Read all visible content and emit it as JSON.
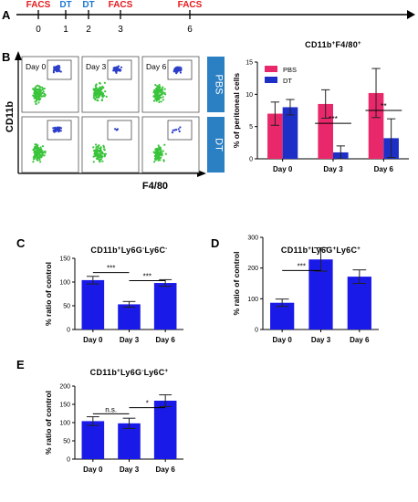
{
  "panels": {
    "A": "A",
    "B": "B",
    "C": "C",
    "D": "D",
    "E": "E"
  },
  "timeline": {
    "events": [
      {
        "day": "0",
        "label": "FACS",
        "color": "#e41a1c"
      },
      {
        "day": "1",
        "label": "DT",
        "color": "#1f78d1"
      },
      {
        "day": "2",
        "label": "DT",
        "color": "#1f78d1"
      },
      {
        "day": "3",
        "label": "FACS",
        "color": "#e41a1c"
      },
      {
        "day": "6",
        "label": "FACS",
        "color": "#e41a1c"
      }
    ]
  },
  "flow": {
    "y_label": "CD11b",
    "x_label": "F4/80",
    "row_labels": [
      "PBS",
      "DT"
    ],
    "col_labels": [
      "Day 0",
      "Day 3",
      "Day 6"
    ],
    "row_color": "#2b7fc3"
  },
  "chart_data": [
    {
      "id": "B",
      "type": "bar",
      "title": "CD11b+F4/80+",
      "ylabel": "% of peritoneal cells",
      "categories": [
        "Day 0",
        "Day 3",
        "Day 6"
      ],
      "ylim": [
        0,
        15
      ],
      "yticks": [
        0,
        5,
        10,
        15
      ],
      "series": [
        {
          "name": "PBS",
          "color": "#e8286a",
          "values": [
            7,
            8.5,
            10.2
          ],
          "errors": [
            1.8,
            2.2,
            3.8
          ]
        },
        {
          "name": "DT",
          "color": "#1d2fc7",
          "values": [
            8,
            1,
            3.2
          ],
          "errors": [
            1.2,
            1,
            3
          ]
        }
      ],
      "legend": "top-left",
      "significance": [
        {
          "category": 1,
          "text": "***"
        },
        {
          "category": 2,
          "text": "**"
        }
      ]
    },
    {
      "id": "C",
      "type": "bar",
      "title": "CD11b+Ly6G-Ly6C-",
      "ylabel": "% ratio of control",
      "categories": [
        "Day 0",
        "Day 3",
        "Day 6"
      ],
      "ylim": [
        0,
        150
      ],
      "yticks": [
        0,
        50,
        100,
        150
      ],
      "series": [
        {
          "color": "#1a1ae8",
          "values": [
            104,
            53,
            98
          ],
          "errors": [
            8,
            6,
            7
          ]
        }
      ],
      "significance": [
        {
          "from": 0,
          "to": 1,
          "y": 120,
          "text": "***"
        },
        {
          "from": 1,
          "to": 2,
          "y": 103,
          "text": "***"
        }
      ]
    },
    {
      "id": "D",
      "type": "bar",
      "title": "CD11b+Ly6G+Ly6C+",
      "ylabel": "% ratio of control",
      "categories": [
        "Day 0",
        "Day 3",
        "Day 6"
      ],
      "ylim": [
        0,
        300
      ],
      "yticks": [
        0,
        100,
        200,
        300
      ],
      "series": [
        {
          "color": "#1a1ae8",
          "values": [
            87,
            228,
            172
          ],
          "errors": [
            12,
            38,
            22
          ]
        }
      ],
      "significance": [
        {
          "from": 0,
          "to": 1,
          "y": 192,
          "text": "***"
        }
      ]
    },
    {
      "id": "E",
      "type": "bar",
      "title": "CD11b+Ly6G-Ly6C+",
      "ylabel": "% ratio of control",
      "categories": [
        "Day 0",
        "Day 3",
        "Day 6"
      ],
      "ylim": [
        0,
        200
      ],
      "yticks": [
        0,
        50,
        100,
        150,
        200
      ],
      "series": [
        {
          "color": "#1a1ae8",
          "values": [
            104,
            98,
            160
          ],
          "errors": [
            12,
            14,
            16
          ]
        }
      ],
      "significance": [
        {
          "from": 0,
          "to": 1,
          "y": 124,
          "text": "n.s."
        },
        {
          "from": 1,
          "to": 2,
          "y": 141,
          "text": "*"
        }
      ]
    }
  ]
}
